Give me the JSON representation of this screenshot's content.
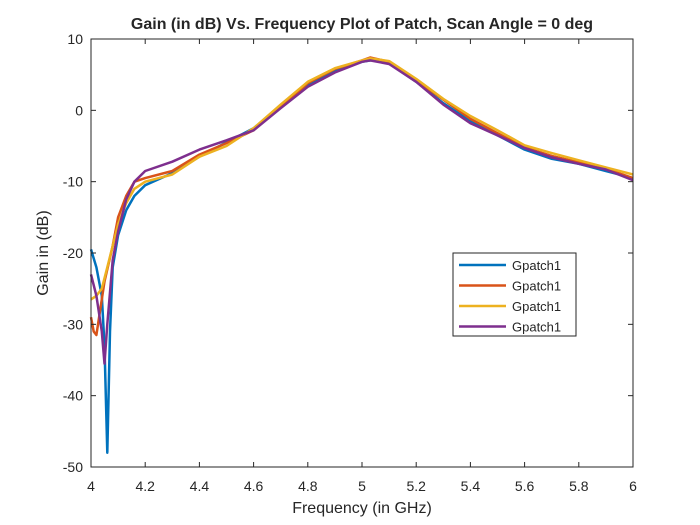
{
  "chart_data": {
    "type": "line",
    "title": "Gain (in dB) Vs. Frequency Plot of Patch, Scan Angle = 0 deg",
    "xlabel": "Frequency (in GHz)",
    "ylabel": "Gain in (dB)",
    "xlim": [
      4,
      6
    ],
    "ylim": [
      -50,
      10
    ],
    "xticks": [
      "4",
      "4.2",
      "4.4",
      "4.6",
      "4.8",
      "5",
      "5.2",
      "5.4",
      "5.6",
      "5.8",
      "6"
    ],
    "yticks": [
      "10",
      "0",
      "-10",
      "-20",
      "-30",
      "-40",
      "-50"
    ],
    "grid": false,
    "legend_location": "right-middle",
    "series": [
      {
        "name": "Gpatch1",
        "color": "#0072BD",
        "points": [
          [
            4.0,
            -19.5
          ],
          [
            4.02,
            -22
          ],
          [
            4.04,
            -26
          ],
          [
            4.05,
            -33
          ],
          [
            4.06,
            -48
          ],
          [
            4.07,
            -31
          ],
          [
            4.08,
            -22
          ],
          [
            4.1,
            -17.5
          ],
          [
            4.13,
            -14
          ],
          [
            4.16,
            -12
          ],
          [
            4.2,
            -10.5
          ],
          [
            4.3,
            -8.8
          ],
          [
            4.4,
            -6.5
          ],
          [
            4.5,
            -4.5
          ],
          [
            4.6,
            -2.5
          ],
          [
            4.7,
            0.5
          ],
          [
            4.8,
            3.5
          ],
          [
            4.9,
            5.5
          ],
          [
            5.0,
            6.8
          ],
          [
            5.05,
            7.1
          ],
          [
            5.1,
            6.6
          ],
          [
            5.2,
            4.0
          ],
          [
            5.3,
            1.0
          ],
          [
            5.4,
            -1.5
          ],
          [
            5.5,
            -3.5
          ],
          [
            5.6,
            -5.5
          ],
          [
            5.7,
            -6.8
          ],
          [
            5.8,
            -7.5
          ],
          [
            5.9,
            -8.5
          ],
          [
            6.0,
            -9.5
          ]
        ]
      },
      {
        "name": "Gpatch1",
        "color": "#D95319",
        "points": [
          [
            4.0,
            -29
          ],
          [
            4.01,
            -31
          ],
          [
            4.02,
            -31.5
          ],
          [
            4.03,
            -29
          ],
          [
            4.05,
            -24
          ],
          [
            4.08,
            -19
          ],
          [
            4.1,
            -15
          ],
          [
            4.13,
            -12
          ],
          [
            4.16,
            -10
          ],
          [
            4.2,
            -9.5
          ],
          [
            4.3,
            -8.5
          ],
          [
            4.4,
            -6.2
          ],
          [
            4.5,
            -4.6
          ],
          [
            4.6,
            -2.8
          ],
          [
            4.7,
            0.5
          ],
          [
            4.8,
            3.8
          ],
          [
            4.9,
            5.8
          ],
          [
            5.0,
            7.0
          ],
          [
            5.03,
            7.4
          ],
          [
            5.1,
            6.8
          ],
          [
            5.2,
            4.2
          ],
          [
            5.3,
            1.5
          ],
          [
            5.4,
            -1.2
          ],
          [
            5.5,
            -3.2
          ],
          [
            5.6,
            -5.2
          ],
          [
            5.7,
            -6.4
          ],
          [
            5.8,
            -7.3
          ],
          [
            5.9,
            -8.2
          ],
          [
            6.0,
            -9.5
          ]
        ]
      },
      {
        "name": "Gpatch1",
        "color": "#EDB120",
        "points": [
          [
            4.0,
            -26.5
          ],
          [
            4.02,
            -26
          ],
          [
            4.04,
            -25
          ],
          [
            4.06,
            -22
          ],
          [
            4.08,
            -19
          ],
          [
            4.1,
            -16
          ],
          [
            4.13,
            -13
          ],
          [
            4.16,
            -11
          ],
          [
            4.2,
            -10
          ],
          [
            4.3,
            -9
          ],
          [
            4.4,
            -6.5
          ],
          [
            4.5,
            -5
          ],
          [
            4.6,
            -2.5
          ],
          [
            4.7,
            0.8
          ],
          [
            4.8,
            4.0
          ],
          [
            4.9,
            5.9
          ],
          [
            5.0,
            7.0
          ],
          [
            5.03,
            7.3
          ],
          [
            5.1,
            6.9
          ],
          [
            5.2,
            4.4
          ],
          [
            5.3,
            1.6
          ],
          [
            5.4,
            -0.8
          ],
          [
            5.5,
            -2.8
          ],
          [
            5.6,
            -4.9
          ],
          [
            5.7,
            -6.0
          ],
          [
            5.8,
            -7.0
          ],
          [
            5.9,
            -8.0
          ],
          [
            6.0,
            -9.0
          ]
        ]
      },
      {
        "name": "Gpatch1",
        "color": "#7E2F8E",
        "points": [
          [
            4.0,
            -23
          ],
          [
            4.02,
            -26
          ],
          [
            4.04,
            -31
          ],
          [
            4.05,
            -35.5
          ],
          [
            4.06,
            -30
          ],
          [
            4.08,
            -21
          ],
          [
            4.1,
            -17
          ],
          [
            4.13,
            -12.5
          ],
          [
            4.16,
            -10
          ],
          [
            4.2,
            -8.5
          ],
          [
            4.3,
            -7.2
          ],
          [
            4.4,
            -5.5
          ],
          [
            4.5,
            -4.2
          ],
          [
            4.6,
            -2.8
          ],
          [
            4.7,
            0.3
          ],
          [
            4.8,
            3.3
          ],
          [
            4.9,
            5.3
          ],
          [
            5.0,
            6.8
          ],
          [
            5.03,
            7.0
          ],
          [
            5.1,
            6.5
          ],
          [
            5.2,
            4.0
          ],
          [
            5.3,
            0.8
          ],
          [
            5.4,
            -1.8
          ],
          [
            5.5,
            -3.5
          ],
          [
            5.6,
            -5.3
          ],
          [
            5.7,
            -6.6
          ],
          [
            5.8,
            -7.5
          ],
          [
            5.9,
            -8.3
          ],
          [
            6.0,
            -9.8
          ]
        ]
      }
    ]
  }
}
